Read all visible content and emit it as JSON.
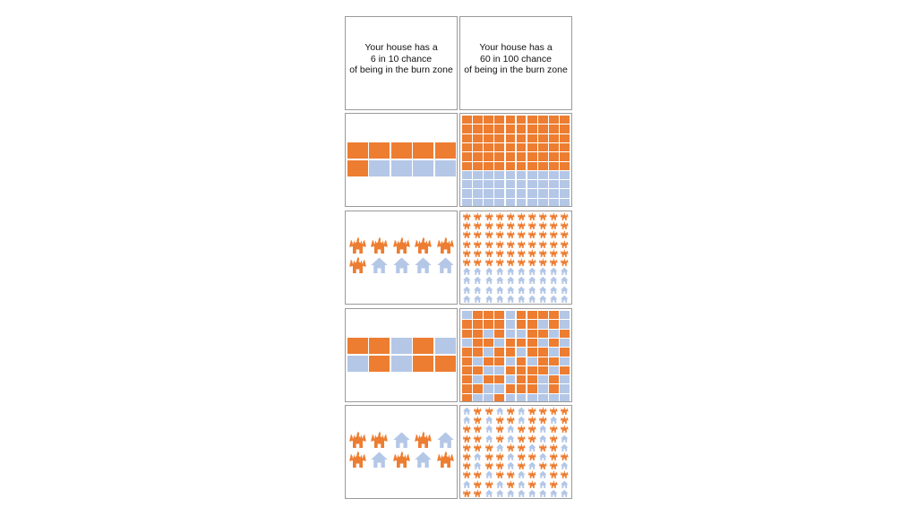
{
  "colors": {
    "burn": "#ED7D31",
    "safe": "#B4C7E7",
    "border": "#9A9A9A"
  },
  "icons": {
    "burning_house": "burning-house-icon",
    "house": "house-icon",
    "square": "square-cell"
  },
  "headers": {
    "left": {
      "line1": "Your house has a",
      "line2": "6 in 10 chance",
      "line3": "of being in the burn zone"
    },
    "right": {
      "line1": "Your house has a",
      "line2": "60 in 100 chance",
      "line3": "of being in the burn zone"
    }
  },
  "panels": [
    {
      "row": 1,
      "col": "left",
      "style": "squares",
      "arrangement": "grouped",
      "cols": 5,
      "rows": 2,
      "total": 10,
      "burn": [
        0,
        1,
        2,
        3,
        4,
        5
      ]
    },
    {
      "row": 1,
      "col": "right",
      "style": "squares",
      "arrangement": "grouped",
      "cols": 10,
      "rows": 10,
      "total": 100,
      "burn_count": 60
    },
    {
      "row": 2,
      "col": "left",
      "style": "houses",
      "arrangement": "grouped",
      "cols": 5,
      "rows": 2,
      "total": 10,
      "burn": [
        0,
        1,
        2,
        3,
        4,
        5
      ]
    },
    {
      "row": 2,
      "col": "right",
      "style": "houses",
      "arrangement": "grouped",
      "cols": 10,
      "rows": 10,
      "total": 100,
      "burn_count": 60
    },
    {
      "row": 3,
      "col": "left",
      "style": "squares",
      "arrangement": "scattered",
      "cols": 5,
      "rows": 2,
      "total": 10,
      "burn": [
        0,
        1,
        3,
        6,
        8,
        9
      ]
    },
    {
      "row": 3,
      "col": "right",
      "style": "squares",
      "arrangement": "scattered",
      "cols": 10,
      "rows": 10,
      "total": 100,
      "burn": [
        1,
        2,
        3,
        5,
        6,
        7,
        8,
        10,
        11,
        12,
        13,
        15,
        16,
        18,
        20,
        21,
        23,
        26,
        27,
        29,
        31,
        32,
        34,
        35,
        36,
        38,
        40,
        41,
        43,
        44,
        46,
        47,
        49,
        50,
        52,
        53,
        55,
        57,
        58,
        60,
        61,
        64,
        65,
        66,
        67,
        69,
        70,
        72,
        73,
        75,
        76,
        78,
        80,
        81,
        84,
        85,
        86,
        88,
        90,
        93
      ]
    },
    {
      "row": 4,
      "col": "left",
      "style": "houses",
      "arrangement": "scattered",
      "cols": 5,
      "rows": 2,
      "total": 10,
      "burn": [
        0,
        1,
        3,
        5,
        7,
        9
      ]
    },
    {
      "row": 4,
      "col": "right",
      "style": "houses",
      "arrangement": "scattered",
      "cols": 10,
      "rows": 10,
      "total": 100,
      "burn": [
        1,
        2,
        4,
        6,
        7,
        8,
        9,
        11,
        13,
        14,
        16,
        17,
        19,
        20,
        21,
        23,
        25,
        26,
        28,
        29,
        30,
        31,
        33,
        35,
        36,
        38,
        40,
        41,
        42,
        44,
        45,
        47,
        48,
        50,
        52,
        53,
        55,
        56,
        58,
        59,
        60,
        62,
        63,
        65,
        67,
        68,
        70,
        71,
        73,
        74,
        76,
        78,
        79,
        81,
        82,
        84,
        86,
        88,
        90,
        91
      ]
    }
  ]
}
